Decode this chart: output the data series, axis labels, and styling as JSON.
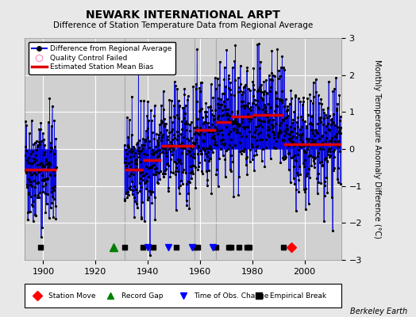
{
  "title": "NEWARK INTERNATIONAL ARPT",
  "subtitle": "Difference of Station Temperature Data from Regional Average",
  "ylabel": "Monthly Temperature Anomaly Difference (°C)",
  "xlim": [
    1893,
    2014
  ],
  "ylim": [
    -3,
    3
  ],
  "xticks": [
    1900,
    1920,
    1940,
    1960,
    1980,
    2000
  ],
  "yticks": [
    -3,
    -2,
    -1,
    0,
    1,
    2,
    3
  ],
  "bg_color": "#e8e8e8",
  "plot_bg_color": "#d0d0d0",
  "grid_color": "#ffffff",
  "line_color": "#0000dd",
  "marker_color": "#000000",
  "bias_color": "#dd0000",
  "seed": 42,
  "station_move_years": [
    1995
  ],
  "record_gap_years": [
    1927
  ],
  "obs_change_years": [
    1940,
    1948,
    1957,
    1965
  ],
  "empirical_break_years": [
    1899,
    1931,
    1938,
    1942,
    1951,
    1958,
    1959,
    1966,
    1971,
    1972,
    1975,
    1978,
    1979,
    1992
  ],
  "gap_start": 1905,
  "gap_end": 1931,
  "segments": [
    {
      "start": 1893,
      "end": 1905,
      "bias": -0.55
    },
    {
      "start": 1931,
      "end": 1938,
      "bias": -0.55
    },
    {
      "start": 1938,
      "end": 1945,
      "bias": -0.3
    },
    {
      "start": 1945,
      "end": 1958,
      "bias": 0.08
    },
    {
      "start": 1958,
      "end": 1966,
      "bias": 0.52
    },
    {
      "start": 1966,
      "end": 1972,
      "bias": 0.72
    },
    {
      "start": 1972,
      "end": 1980,
      "bias": 0.87
    },
    {
      "start": 1980,
      "end": 1992,
      "bias": 0.93
    },
    {
      "start": 1992,
      "end": 2014,
      "bias": 0.12
    }
  ],
  "vertical_lines_years": [
    1931,
    1958,
    1966,
    1980
  ],
  "noise_scale": 0.75,
  "marker_y": -2.65,
  "berkeley_earth_text": "Berkeley Earth"
}
